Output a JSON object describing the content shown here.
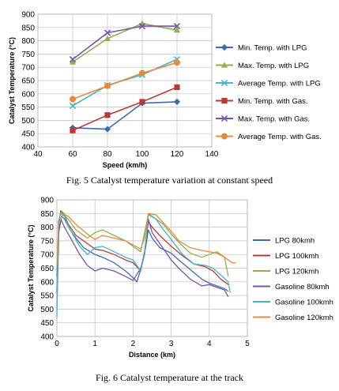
{
  "captions": {
    "fig5": "Fig. 5 Catalyst temperature variation at constant speed",
    "fig6": "Fig. 6 Catalyst temperature at the track"
  },
  "chart_data": [
    {
      "type": "line",
      "title": "",
      "xlabel": "Speed (km/h)",
      "ylabel": "Catalyst Temperature (°C)",
      "xlim": [
        40,
        140
      ],
      "ylim": [
        400,
        900
      ],
      "xticks": [
        40,
        60,
        80,
        100,
        120,
        140
      ],
      "yticks": [
        400,
        450,
        500,
        550,
        600,
        650,
        700,
        750,
        800,
        850,
        900
      ],
      "grid": true,
      "legend": "right",
      "x": [
        60,
        80,
        100,
        120
      ],
      "series": [
        {
          "name": "Min. Temp. with LPG",
          "values": [
            472,
            467,
            565,
            570
          ],
          "color": "#3a6bb0",
          "marker": "diamond"
        },
        {
          "name": "Max. Temp. with LPG",
          "values": [
            720,
            808,
            865,
            840
          ],
          "color": "#8db04a",
          "marker": "triangle"
        },
        {
          "name": "Average Temp. with LPG",
          "values": [
            555,
            632,
            672,
            730
          ],
          "color": "#3fb6c9",
          "marker": "x"
        },
        {
          "name": "Min. Temp. with Gas.",
          "values": [
            462,
            520,
            570,
            625
          ],
          "color": "#b83a36",
          "marker": "square"
        },
        {
          "name": "Max. Temp. with Gas.",
          "values": [
            730,
            830,
            855,
            855
          ],
          "color": "#7a52a8",
          "marker": "x"
        },
        {
          "name": "Average Temp. with Gas.",
          "values": [
            580,
            630,
            678,
            718
          ],
          "color": "#e88a3a",
          "marker": "circle"
        }
      ]
    },
    {
      "type": "line",
      "title": "",
      "xlabel": "Distance (km)",
      "ylabel": "Catalyst Temperature (°C)",
      "xlim": [
        0,
        5
      ],
      "ylim": [
        400,
        900
      ],
      "xticks": [
        0,
        1,
        2,
        3,
        4,
        5
      ],
      "yticks": [
        400,
        450,
        500,
        550,
        600,
        650,
        700,
        750,
        800,
        850,
        900
      ],
      "grid": true,
      "legend": "right",
      "series": [
        {
          "name": "LPG 80kmh",
          "color": "#3a6bb0",
          "x": [
            0,
            0.05,
            0.12,
            0.2,
            0.35,
            0.5,
            0.7,
            1.0,
            1.2,
            1.5,
            1.8,
            2.0,
            2.1,
            2.2,
            2.3,
            2.4,
            2.5,
            2.7,
            3.0,
            3.2,
            3.5,
            3.8,
            4.0,
            4.2,
            4.4,
            4.5
          ],
          "y": [
            500,
            780,
            840,
            830,
            790,
            760,
            725,
            700,
            690,
            670,
            640,
            615,
            600,
            645,
            700,
            790,
            760,
            725,
            705,
            680,
            645,
            610,
            595,
            585,
            575,
            565
          ]
        },
        {
          "name": "LPG 100kmh",
          "color": "#b83a36",
          "x": [
            0,
            0.05,
            0.1,
            0.18,
            0.3,
            0.5,
            0.8,
            1.0,
            1.2,
            1.5,
            1.8,
            2.0,
            2.2,
            2.3,
            2.4,
            2.5,
            2.7,
            3.0,
            3.3,
            3.6,
            3.9,
            4.1,
            4.3,
            4.5
          ],
          "y": [
            560,
            810,
            860,
            850,
            810,
            770,
            740,
            720,
            715,
            700,
            680,
            670,
            640,
            710,
            820,
            800,
            770,
            730,
            695,
            665,
            655,
            640,
            610,
            590
          ]
        },
        {
          "name": "LPG 120kmh",
          "color": "#8db04a",
          "x": [
            0,
            0.05,
            0.1,
            0.2,
            0.35,
            0.5,
            0.8,
            1.0,
            1.2,
            1.5,
            1.8,
            2.0,
            2.2,
            2.3,
            2.4,
            2.6,
            2.8,
            3.0,
            3.2,
            3.5,
            3.8,
            4.0,
            4.2,
            4.4,
            4.5
          ],
          "y": [
            620,
            820,
            855,
            845,
            820,
            790,
            760,
            780,
            790,
            770,
            750,
            730,
            710,
            780,
            845,
            830,
            810,
            775,
            745,
            705,
            690,
            700,
            710,
            690,
            620
          ]
        },
        {
          "name": "Gasoline 80kmh",
          "color": "#7a52a8",
          "x": [
            0,
            0.05,
            0.1,
            0.2,
            0.4,
            0.6,
            0.8,
            1.0,
            1.2,
            1.5,
            1.8,
            2.0,
            2.2,
            2.3,
            2.4,
            2.5,
            2.8,
            3.0,
            3.2,
            3.5,
            3.8,
            4.0,
            4.2,
            4.4,
            4.5
          ],
          "y": [
            620,
            800,
            830,
            800,
            750,
            700,
            660,
            640,
            650,
            640,
            620,
            605,
            650,
            700,
            830,
            780,
            720,
            680,
            650,
            610,
            585,
            590,
            580,
            570,
            545
          ]
        },
        {
          "name": "Gasoline 100kmh",
          "color": "#3fb6c9",
          "x": [
            0,
            0.04,
            0.1,
            0.2,
            0.35,
            0.6,
            0.8,
            1.0,
            1.2,
            1.5,
            1.8,
            2.0,
            2.2,
            2.3,
            2.4,
            2.6,
            2.8,
            3.0,
            3.3,
            3.6,
            3.9,
            4.1,
            4.3,
            4.5,
            4.55
          ],
          "y": [
            470,
            820,
            850,
            840,
            790,
            730,
            700,
            725,
            730,
            710,
            690,
            680,
            640,
            700,
            850,
            830,
            790,
            755,
            700,
            665,
            660,
            650,
            625,
            600,
            560
          ]
        },
        {
          "name": "Gasoline 120kmh",
          "color": "#e88a3a",
          "x": [
            0,
            0.05,
            0.15,
            0.3,
            0.5,
            0.8,
            1.0,
            1.2,
            1.5,
            1.8,
            2.0,
            2.2,
            2.3,
            2.4,
            2.6,
            2.8,
            3.0,
            3.2,
            3.5,
            3.8,
            4.0,
            4.2,
            4.4,
            4.6,
            4.7
          ],
          "y": [
            660,
            810,
            850,
            840,
            810,
            775,
            755,
            770,
            760,
            750,
            735,
            720,
            760,
            850,
            845,
            815,
            785,
            750,
            725,
            715,
            710,
            705,
            690,
            670,
            670
          ]
        }
      ]
    }
  ]
}
